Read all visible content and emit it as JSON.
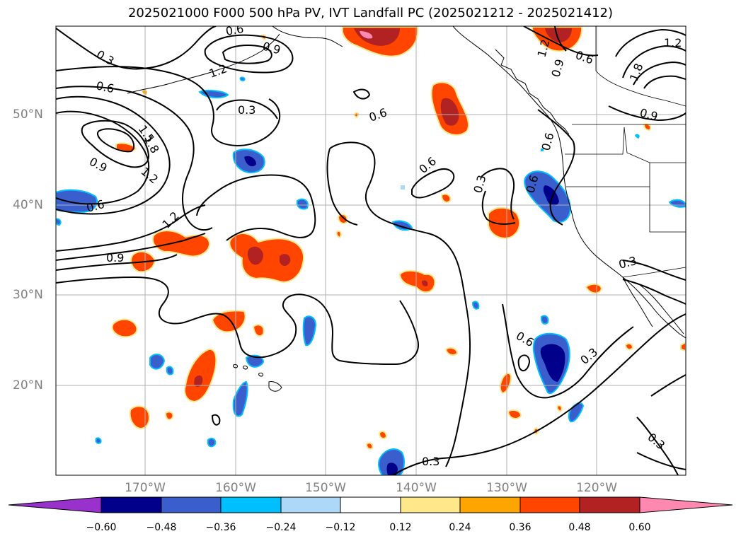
{
  "title": "2025021000 F000 500 hPa PV, IVT Landfall PC (2025021212 - 2025021412)",
  "lat_labels": [
    "50°N",
    "40°N",
    "30°N",
    "20°N"
  ],
  "lon_labels": [
    "170°W",
    "160°W",
    "150°W",
    "140°W",
    "130°W",
    "120°W"
  ],
  "colorbar": {
    "ticks": [
      "−0.60",
      "−0.48",
      "−0.36",
      "−0.24",
      "−0.12",
      "0.12",
      "0.24",
      "0.36",
      "0.48",
      "0.60"
    ],
    "colors": [
      "#9932cc",
      "#00008b",
      "#3a5fcd",
      "#00bfff",
      "#add8f7",
      "#ffffff",
      "#ffe88a",
      "#ffa500",
      "#ff4500",
      "#b22222",
      "#ff88b0"
    ]
  },
  "contour_labels": [
    "0.3",
    "0.6",
    "0.9",
    "1.2",
    "1.5",
    "1.8"
  ]
}
